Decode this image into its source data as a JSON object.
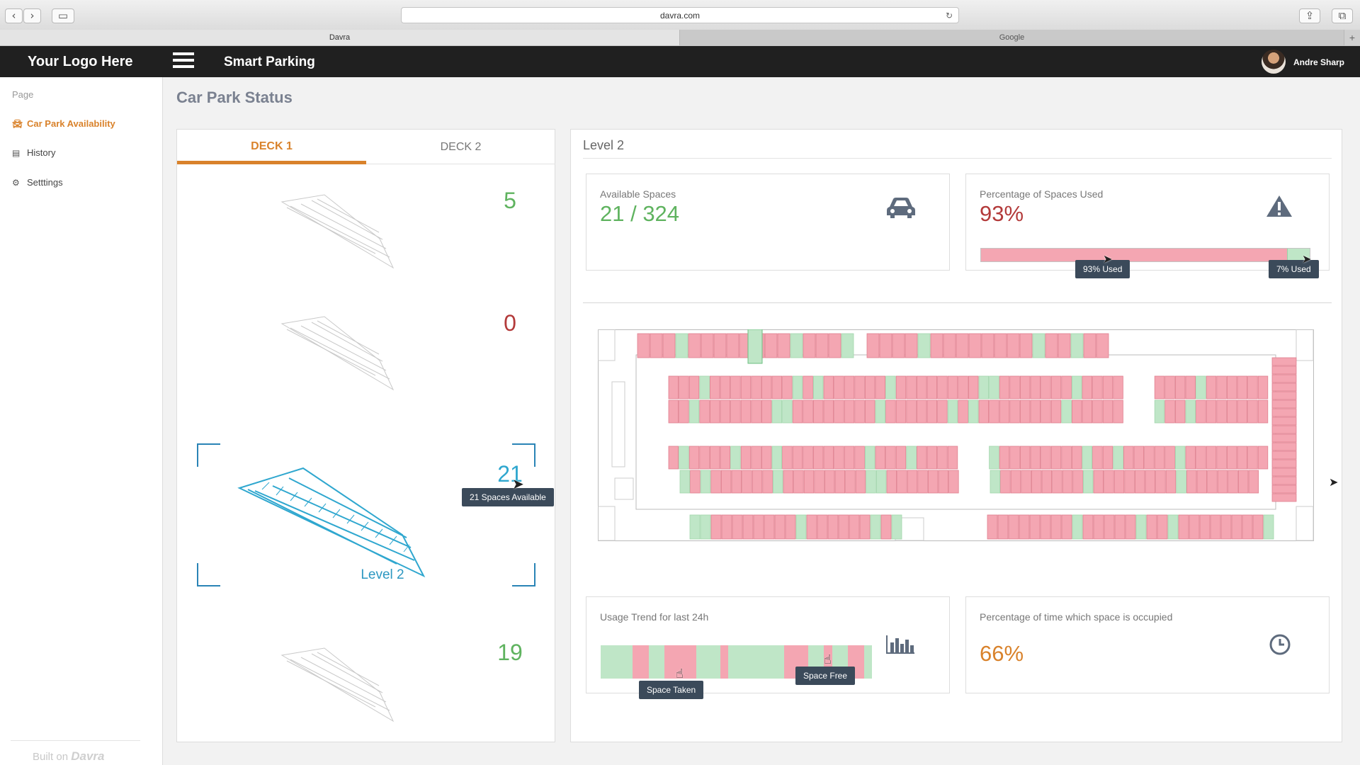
{
  "browser": {
    "url": "davra.com",
    "tabs": [
      {
        "label": "Davra"
      },
      {
        "label": "Google"
      }
    ]
  },
  "header": {
    "logo": "Your Logo Here",
    "app_title": "Smart Parking",
    "user_name": "Andre Sharp"
  },
  "sidebar": {
    "heading": "Page",
    "items": [
      {
        "label": "Car Park Availability",
        "icon": "car-icon",
        "active": true
      },
      {
        "label": "History",
        "icon": "book-icon",
        "active": false
      },
      {
        "label": "Setttings",
        "icon": "gear-icon",
        "active": false
      }
    ],
    "footer_text": "Built on",
    "footer_brand": "Davra"
  },
  "main": {
    "title": "Car Park Status"
  },
  "decks": {
    "tabs": [
      {
        "label": "DECK 1"
      },
      {
        "label": "DECK 2"
      }
    ],
    "levels": [
      {
        "count": "5",
        "color": "#5fb35f"
      },
      {
        "count": "0",
        "color": "#b33a3a"
      },
      {
        "count": "21",
        "color": "#2fa7cf",
        "label": "Level 2",
        "tooltip": "21 Spaces Available"
      },
      {
        "count": "19",
        "color": "#5fb35f"
      }
    ]
  },
  "level_panel": {
    "title": "Level 2",
    "available": {
      "label": "Available Spaces",
      "value": "21 / 324",
      "icon": "car-icon"
    },
    "percentage_used": {
      "label": "Percentage of Spaces Used",
      "value": "93%",
      "used_fraction": 0.93,
      "icon": "warning-icon",
      "tooltip_used": "93% Used",
      "tooltip_free": "7% Used"
    },
    "usage_trend": {
      "label": "Usage Trend for last 24h",
      "icon": "bar-chart-icon",
      "tooltip_taken": "Space Taken",
      "tooltip_free": "Space Free",
      "segments": [
        "free",
        "free",
        "free",
        "free",
        "taken",
        "taken",
        "free",
        "free",
        "taken",
        "taken",
        "taken",
        "taken",
        "free",
        "free",
        "free",
        "taken",
        "free",
        "free",
        "free",
        "free",
        "free",
        "free",
        "free",
        "taken",
        "taken",
        "taken",
        "free",
        "free",
        "taken",
        "free",
        "free",
        "taken",
        "taken",
        "free"
      ]
    },
    "time_occupied": {
      "label": "Percentage of time which space is occupied",
      "value": "66%",
      "icon": "clock-icon"
    }
  },
  "colors": {
    "accent": "#d9822b",
    "taken": "#f4a6b2",
    "free": "#bfe6c7",
    "level_blue": "#2fa7cf",
    "dark_nav": "#202020"
  }
}
